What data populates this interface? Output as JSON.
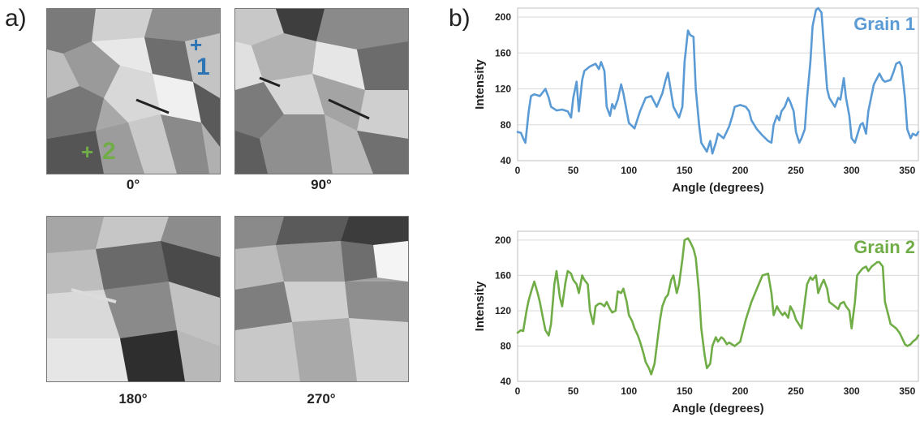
{
  "panel_a": {
    "letter": "a)",
    "images": [
      {
        "caption": "0°"
      },
      {
        "caption": "90°"
      },
      {
        "caption": "180°"
      },
      {
        "caption": "270°"
      }
    ],
    "markers": [
      {
        "symbol": "+",
        "label": "1",
        "color": "#2e75b6"
      },
      {
        "symbol": "+",
        "label": "2",
        "color": "#70ad47"
      }
    ]
  },
  "panel_b": {
    "letter": "b)"
  },
  "chart_data": [
    {
      "type": "line",
      "series_label": "Grain 1",
      "color": "#5b9bd5",
      "xlabel": "Angle (degrees)",
      "ylabel": "Intensity",
      "xlim": [
        0,
        360
      ],
      "ylim": [
        40,
        210
      ],
      "xticks": [
        0,
        50,
        100,
        150,
        200,
        250,
        300,
        350
      ],
      "yticks": [
        40,
        80,
        120,
        160,
        200
      ],
      "grid": "horizontal",
      "x": [
        0,
        3,
        5,
        7,
        10,
        12,
        15,
        20,
        25,
        28,
        30,
        35,
        40,
        45,
        48,
        50,
        53,
        55,
        58,
        60,
        65,
        70,
        73,
        75,
        78,
        80,
        83,
        85,
        87,
        90,
        93,
        95,
        98,
        100,
        105,
        110,
        115,
        120,
        125,
        130,
        133,
        135,
        138,
        140,
        145,
        148,
        150,
        153,
        155,
        158,
        160,
        163,
        165,
        170,
        173,
        175,
        178,
        180,
        185,
        190,
        193,
        195,
        200,
        205,
        208,
        210,
        215,
        220,
        225,
        228,
        230,
        233,
        235,
        237,
        240,
        243,
        245,
        248,
        250,
        253,
        255,
        258,
        260,
        263,
        265,
        268,
        270,
        273,
        275,
        278,
        280,
        285,
        288,
        290,
        293,
        295,
        298,
        300,
        303,
        305,
        308,
        310,
        313,
        315,
        320,
        325,
        328,
        330,
        335,
        338,
        340,
        343,
        345,
        348,
        350,
        353,
        355,
        358,
        360
      ],
      "y": [
        72,
        71,
        65,
        60,
        95,
        112,
        114,
        112,
        120,
        110,
        100,
        96,
        97,
        95,
        88,
        110,
        128,
        95,
        130,
        140,
        145,
        148,
        142,
        150,
        140,
        100,
        90,
        103,
        98,
        108,
        125,
        115,
        95,
        82,
        76,
        95,
        110,
        112,
        100,
        115,
        130,
        138,
        115,
        100,
        88,
        100,
        150,
        185,
        180,
        178,
        120,
        80,
        60,
        50,
        62,
        48,
        60,
        70,
        65,
        78,
        90,
        100,
        102,
        100,
        95,
        85,
        75,
        68,
        62,
        60,
        80,
        90,
        85,
        95,
        100,
        110,
        105,
        95,
        72,
        60,
        65,
        75,
        110,
        150,
        190,
        208,
        210,
        205,
        170,
        120,
        110,
        100,
        110,
        108,
        132,
        110,
        90,
        65,
        60,
        68,
        80,
        82,
        70,
        95,
        125,
        137,
        130,
        128,
        130,
        140,
        148,
        150,
        145,
        110,
        75,
        65,
        70,
        68,
        72
      ]
    },
    {
      "type": "line",
      "series_label": "Grain 2",
      "color": "#70ad47",
      "xlabel": "Angle (degrees)",
      "ylabel": "Intensity",
      "xlim": [
        0,
        360
      ],
      "ylim": [
        40,
        210
      ],
      "xticks": [
        0,
        50,
        100,
        150,
        200,
        250,
        300,
        350
      ],
      "yticks": [
        40,
        80,
        120,
        160,
        200
      ],
      "grid": "horizontal",
      "x": [
        0,
        3,
        5,
        8,
        10,
        13,
        15,
        18,
        20,
        23,
        25,
        28,
        30,
        33,
        35,
        38,
        40,
        43,
        45,
        48,
        50,
        53,
        55,
        58,
        60,
        63,
        65,
        68,
        70,
        73,
        75,
        78,
        80,
        83,
        85,
        88,
        90,
        93,
        95,
        98,
        100,
        103,
        105,
        108,
        110,
        113,
        115,
        118,
        120,
        123,
        125,
        128,
        130,
        133,
        135,
        138,
        140,
        143,
        145,
        148,
        150,
        153,
        155,
        158,
        160,
        163,
        165,
        168,
        170,
        173,
        175,
        178,
        180,
        183,
        185,
        188,
        190,
        195,
        200,
        205,
        210,
        215,
        220,
        225,
        228,
        230,
        233,
        235,
        238,
        240,
        243,
        245,
        248,
        250,
        255,
        258,
        260,
        263,
        265,
        268,
        270,
        273,
        275,
        278,
        280,
        285,
        288,
        290,
        293,
        295,
        298,
        300,
        303,
        305,
        308,
        310,
        313,
        315,
        318,
        320,
        323,
        325,
        328,
        330,
        333,
        335,
        338,
        340,
        343,
        345,
        348,
        350,
        353,
        355,
        358,
        360
      ],
      "y": [
        95,
        98,
        97,
        120,
        132,
        145,
        153,
        140,
        130,
        110,
        98,
        92,
        105,
        150,
        165,
        135,
        125,
        152,
        165,
        162,
        155,
        150,
        140,
        160,
        155,
        150,
        120,
        105,
        125,
        128,
        128,
        125,
        130,
        122,
        118,
        120,
        142,
        140,
        145,
        130,
        115,
        108,
        100,
        92,
        85,
        72,
        62,
        55,
        48,
        60,
        80,
        110,
        125,
        135,
        138,
        155,
        160,
        140,
        150,
        178,
        200,
        202,
        198,
        190,
        180,
        140,
        100,
        70,
        55,
        60,
        80,
        90,
        85,
        90,
        88,
        82,
        84,
        80,
        85,
        110,
        130,
        145,
        160,
        162,
        140,
        115,
        125,
        120,
        115,
        118,
        112,
        125,
        118,
        110,
        100,
        130,
        150,
        158,
        155,
        160,
        140,
        150,
        155,
        145,
        130,
        125,
        122,
        128,
        130,
        125,
        120,
        100,
        130,
        160,
        165,
        168,
        170,
        165,
        170,
        172,
        175,
        175,
        170,
        130,
        115,
        105,
        102,
        100,
        95,
        90,
        82,
        80,
        82,
        85,
        88,
        92
      ]
    }
  ]
}
